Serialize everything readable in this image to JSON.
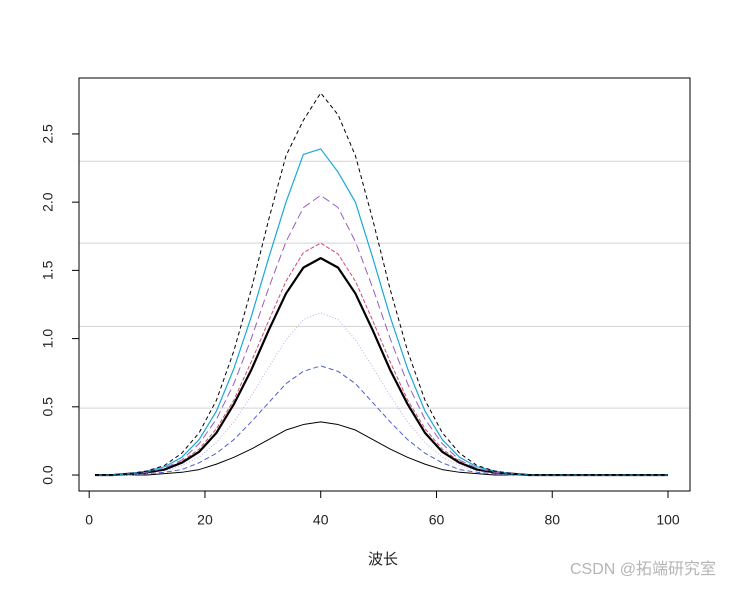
{
  "chart_data": {
    "type": "line",
    "x_label": "波长",
    "watermark": "CSDN @拓端研究室",
    "x": [
      1,
      4,
      7,
      10,
      13,
      16,
      19,
      22,
      25,
      28,
      31,
      34,
      37,
      40,
      43,
      46,
      49,
      52,
      55,
      58,
      61,
      64,
      67,
      70,
      73,
      76,
      79,
      82,
      85,
      88,
      91,
      94,
      97,
      100
    ],
    "series": [
      {
        "color": "#000000",
        "width": 1,
        "dash": "none",
        "values": [
          0,
          0,
          0,
          0,
          0.01,
          0.02,
          0.04,
          0.08,
          0.13,
          0.19,
          0.26,
          0.33,
          0.37,
          0.39,
          0.37,
          0.33,
          0.26,
          0.19,
          0.13,
          0.08,
          0.04,
          0.02,
          0.01,
          0,
          0,
          0,
          0,
          0,
          0,
          0,
          0,
          0,
          0,
          0
        ]
      },
      {
        "color": "#4a5fd0",
        "width": 1,
        "dash": "5,3",
        "values": [
          0,
          0,
          0,
          0.01,
          0.02,
          0.04,
          0.09,
          0.16,
          0.26,
          0.39,
          0.53,
          0.67,
          0.76,
          0.8,
          0.76,
          0.67,
          0.53,
          0.39,
          0.26,
          0.16,
          0.09,
          0.04,
          0.02,
          0.01,
          0,
          0,
          0,
          0,
          0,
          0,
          0,
          0,
          0,
          0
        ]
      },
      {
        "color": "#b8b0e8",
        "width": 1,
        "dash": "1,2",
        "values": [
          0,
          0,
          0,
          0.01,
          0.03,
          0.07,
          0.13,
          0.24,
          0.39,
          0.58,
          0.79,
          0.99,
          1.14,
          1.19,
          1.14,
          0.99,
          0.79,
          0.58,
          0.39,
          0.24,
          0.13,
          0.07,
          0.03,
          0.01,
          0,
          0,
          0,
          0,
          0,
          0,
          0,
          0,
          0,
          0
        ]
      },
      {
        "color": "#d04a6a",
        "width": 1,
        "dash": "4,2",
        "values": [
          0,
          0,
          0.01,
          0.02,
          0.04,
          0.1,
          0.19,
          0.34,
          0.55,
          0.83,
          1.13,
          1.42,
          1.63,
          1.7,
          1.62,
          1.42,
          1.13,
          0.83,
          0.55,
          0.34,
          0.19,
          0.1,
          0.04,
          0.02,
          0.01,
          0,
          0,
          0,
          0,
          0,
          0,
          0,
          0,
          0
        ]
      },
      {
        "color": "#000000",
        "width": 2.2,
        "dash": "none",
        "values": [
          0,
          0,
          0.01,
          0.02,
          0.04,
          0.09,
          0.17,
          0.31,
          0.52,
          0.77,
          1.06,
          1.33,
          1.52,
          1.59,
          1.52,
          1.33,
          1.06,
          0.77,
          0.52,
          0.31,
          0.17,
          0.09,
          0.04,
          0.02,
          0.01,
          0,
          0,
          0,
          0,
          0,
          0,
          0,
          0,
          0
        ]
      },
      {
        "color": "#9a5cc0",
        "width": 1,
        "dash": "8,4",
        "values": [
          0,
          0,
          0.01,
          0.02,
          0.05,
          0.11,
          0.23,
          0.41,
          0.67,
          1.0,
          1.37,
          1.71,
          1.96,
          2.05,
          1.96,
          1.71,
          1.37,
          1.0,
          0.67,
          0.41,
          0.23,
          0.11,
          0.05,
          0.02,
          0.01,
          0,
          0,
          0,
          0,
          0,
          0,
          0,
          0,
          0
        ]
      },
      {
        "color": "#1aa8d8",
        "width": 1.2,
        "dash": "none",
        "values": [
          0,
          0,
          0.01,
          0.03,
          0.06,
          0.13,
          0.26,
          0.47,
          0.78,
          1.16,
          1.59,
          2.0,
          2.35,
          2.39,
          2.22,
          2.0,
          1.59,
          1.16,
          0.78,
          0.47,
          0.26,
          0.13,
          0.06,
          0.03,
          0.01,
          0,
          0,
          0,
          0,
          0,
          0,
          0,
          0,
          0
        ]
      },
      {
        "color": "#000000",
        "width": 1,
        "dash": "4,3",
        "values": [
          0,
          0,
          0.01,
          0.03,
          0.07,
          0.16,
          0.31,
          0.55,
          0.91,
          1.36,
          1.87,
          2.34,
          2.6,
          2.8,
          2.64,
          2.34,
          1.87,
          1.36,
          0.91,
          0.55,
          0.31,
          0.16,
          0.07,
          0.03,
          0.01,
          0,
          0,
          0,
          0,
          0,
          0,
          0,
          0,
          0
        ]
      }
    ],
    "hlines": [
      0.49,
      1.09,
      1.7,
      2.3
    ],
    "hline_color": "#d3d3d3",
    "xlim": [
      -1.76,
      103.8
    ],
    "ylim": [
      -0.117,
      2.91
    ],
    "xticks": [
      0,
      20,
      40,
      60,
      80,
      100
    ],
    "yticks": [
      {
        "value": 0,
        "label": "0.0"
      },
      0.5,
      {
        "value": 1,
        "label": "1.0"
      },
      1.5,
      {
        "value": 2,
        "label": "2.0"
      },
      2.5
    ]
  }
}
